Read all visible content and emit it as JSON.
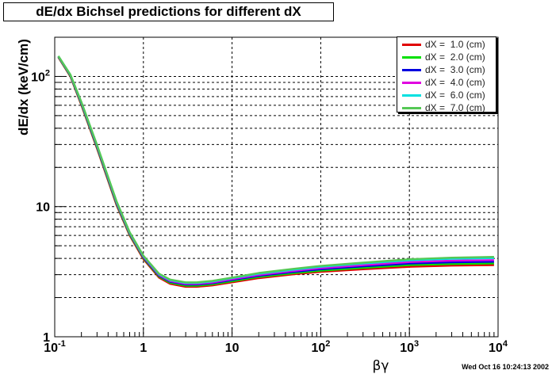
{
  "title": "dE/dx Bichsel predictions for different dX",
  "timestamp": "Wed Oct 16 10:24:13 2002",
  "chart_data": {
    "type": "line",
    "title": "dE/dx Bichsel predictions for different dX",
    "xlabel": "βγ",
    "ylabel": "dE/dx (keV/cm)",
    "xscale": "log",
    "yscale": "log",
    "xlim": [
      0.1,
      10000
    ],
    "ylim": [
      1,
      200
    ],
    "grid": true,
    "legend_position": "top-right",
    "x_tick_labels": [
      {
        "base": "10",
        "exp": "-1"
      },
      {
        "base": "1",
        "exp": ""
      },
      {
        "base": "10",
        "exp": ""
      },
      {
        "base": "10",
        "exp": "2"
      },
      {
        "base": "10",
        "exp": "3"
      },
      {
        "base": "10",
        "exp": "4"
      }
    ],
    "y_tick_labels": [
      {
        "base": "1",
        "exp": ""
      },
      {
        "base": "10",
        "exp": ""
      },
      {
        "base": "10",
        "exp": "2"
      }
    ],
    "x": [
      0.11,
      0.15,
      0.2,
      0.3,
      0.5,
      0.7,
      1.0,
      1.5,
      2,
      3,
      4,
      6,
      10,
      20,
      50,
      100,
      300,
      1000,
      3000,
      9000
    ],
    "series": [
      {
        "name": "dX =  1.0 (cm)",
        "color": "#e00000",
        "values": [
          140,
          100,
          60,
          28,
          10.2,
          6.0,
          3.95,
          2.85,
          2.55,
          2.42,
          2.42,
          2.48,
          2.62,
          2.82,
          3.02,
          3.15,
          3.3,
          3.45,
          3.52,
          3.55
        ]
      },
      {
        "name": "dX =  2.0 (cm)",
        "color": "#00e000",
        "values": [
          141,
          101,
          61,
          28.5,
          10.4,
          6.1,
          4.02,
          2.9,
          2.6,
          2.47,
          2.47,
          2.53,
          2.67,
          2.88,
          3.08,
          3.22,
          3.38,
          3.55,
          3.62,
          3.66
        ]
      },
      {
        "name": "dX =  3.0 (cm)",
        "color": "#0000e0",
        "values": [
          142,
          102,
          62,
          29,
          10.6,
          6.2,
          4.08,
          2.95,
          2.65,
          2.52,
          2.52,
          2.58,
          2.73,
          2.94,
          3.15,
          3.3,
          3.47,
          3.65,
          3.73,
          3.77
        ]
      },
      {
        "name": "dX =  4.0 (cm)",
        "color": "#e000e0",
        "values": [
          142.5,
          102.5,
          62.5,
          29.3,
          10.7,
          6.25,
          4.12,
          2.98,
          2.68,
          2.55,
          2.55,
          2.61,
          2.77,
          2.99,
          3.21,
          3.37,
          3.55,
          3.75,
          3.84,
          3.88
        ]
      },
      {
        "name": "dX =  6.0 (cm)",
        "color": "#00e0e0",
        "values": [
          143,
          103,
          63,
          29.6,
          10.85,
          6.32,
          4.17,
          3.02,
          2.72,
          2.59,
          2.59,
          2.66,
          2.82,
          3.05,
          3.28,
          3.45,
          3.65,
          3.87,
          3.97,
          4.02
        ]
      },
      {
        "name": "dX =  7.0 (cm)",
        "color": "#55c855",
        "values": [
          143.5,
          103.5,
          63.5,
          29.8,
          10.95,
          6.36,
          4.2,
          3.05,
          2.75,
          2.62,
          2.62,
          2.69,
          2.85,
          3.09,
          3.33,
          3.5,
          3.71,
          3.94,
          4.05,
          4.11
        ]
      }
    ]
  }
}
